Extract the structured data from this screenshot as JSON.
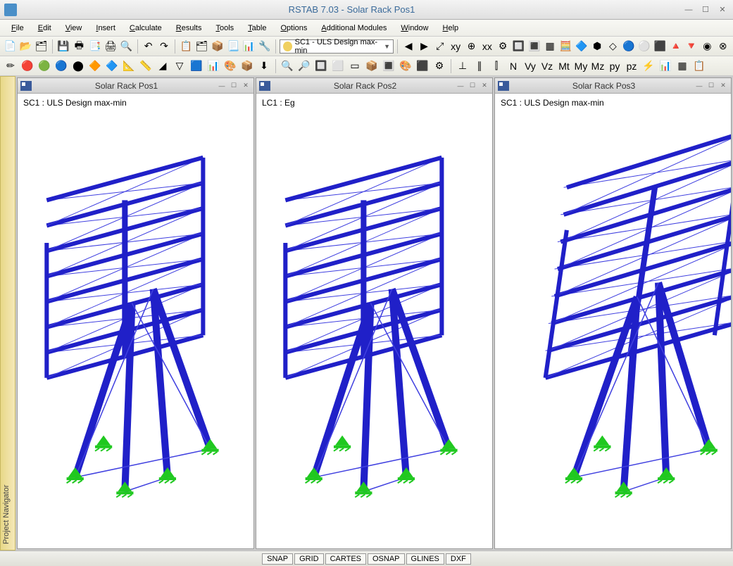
{
  "app": {
    "title": "RSTAB 7.03 - Solar Rack Pos1"
  },
  "menus": [
    "File",
    "Edit",
    "View",
    "Insert",
    "Calculate",
    "Results",
    "Tools",
    "Table",
    "Options",
    "Additional Modules",
    "Window",
    "Help"
  ],
  "combo": {
    "value": "SC1 - ULS Design max-min"
  },
  "sideTab": "Project Navigator",
  "views": [
    {
      "title": "Solar Rack Pos1",
      "label": "SC1 : ULS Design max-min"
    },
    {
      "title": "Solar Rack Pos2",
      "label": "LC1 : Eg"
    },
    {
      "title": "Solar Rack Pos3",
      "label": "SC1 : ULS Design max-min"
    }
  ],
  "status": [
    "SNAP",
    "GRID",
    "CARTES",
    "OSNAP",
    "GLINES",
    "DXF"
  ],
  "colors": {
    "frame": "#2020c8",
    "frameLight": "#4040e0",
    "support": "#20c820",
    "bg": "#ffffff"
  },
  "toolbarIcons1": [
    "📄",
    "📂",
    "🗂",
    "💾",
    "🖶",
    "📑",
    "🖨",
    "🔍",
    "↶",
    "↷",
    "📋",
    "🗂",
    "📦",
    "📃",
    "📊",
    "🔧"
  ],
  "toolbarIcons1b": [
    "◀",
    "▶",
    "⤢",
    "xy",
    "⊕",
    "xx",
    "⚙",
    "🔲",
    "🔳",
    "▦",
    "🧮",
    "🔷",
    "⬢",
    "◇",
    "🔵",
    "⚪",
    "⬛",
    "🔺",
    "🔻",
    "◉",
    "⊗"
  ],
  "toolbarIcons2": [
    "✏",
    "🔴",
    "🟢",
    "🔵",
    "⬤",
    "🔶",
    "🔷",
    "📐",
    "📏",
    "◢",
    "▽",
    "🟦",
    "📊",
    "🎨",
    "📦",
    "⬇"
  ],
  "toolbarIcons2b": [
    "🔍",
    "🔎",
    "🔲",
    "⬜",
    "▭",
    "📦",
    "🔳",
    "🎨",
    "⬛",
    "⚙"
  ],
  "toolbarIcons2c": [
    "⊥",
    "∥",
    "⫿",
    "N",
    "Vy",
    "Vz",
    "Mt",
    "My",
    "Mz",
    "py",
    "pz",
    "⚡",
    "📊",
    "▦",
    "📋"
  ]
}
